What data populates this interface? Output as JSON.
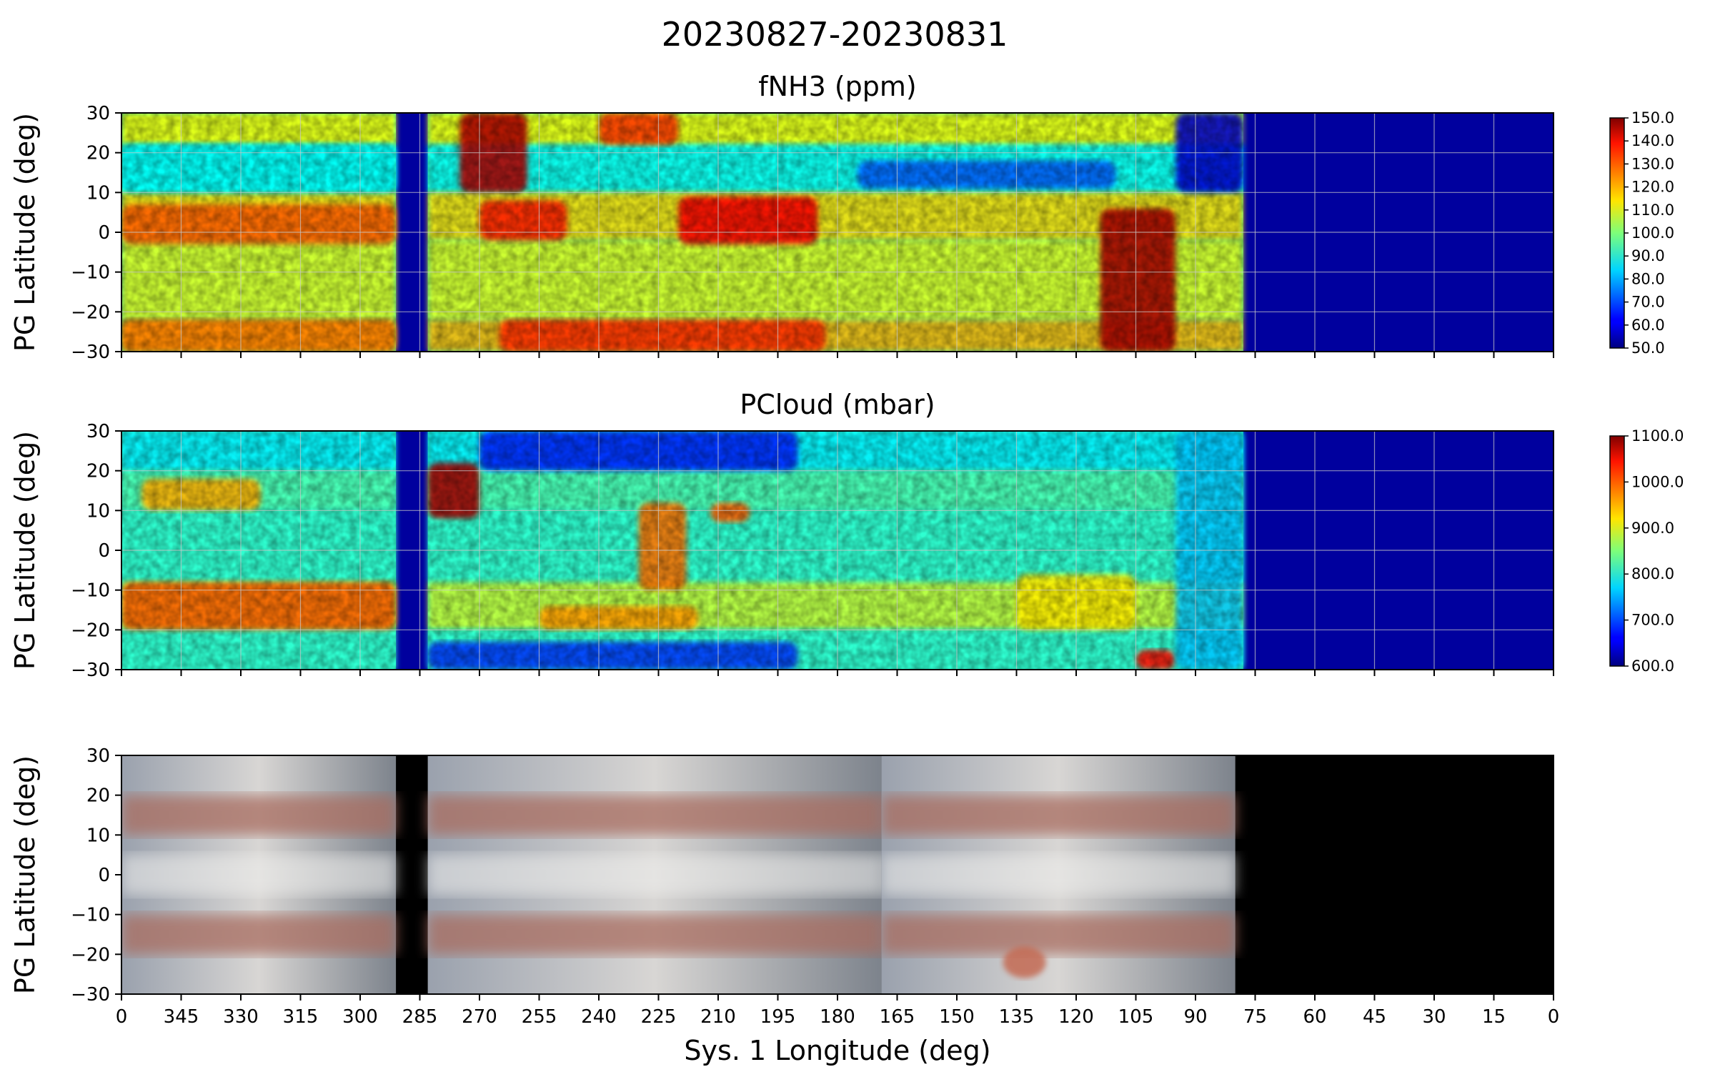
{
  "title": "20230827-20230831",
  "chart_data": [
    {
      "type": "heatmap",
      "title": "fNH3 (ppm)",
      "ylabel": "PG Latitude (deg)",
      "xlabel": "",
      "xlim": [
        360,
        0
      ],
      "ylim": [
        -30,
        30
      ],
      "x_ticks": [
        "0",
        "345",
        "330",
        "315",
        "300",
        "285",
        "270",
        "255",
        "240",
        "225",
        "210",
        "195",
        "180",
        "165",
        "150",
        "135",
        "120",
        "105",
        "90",
        "75",
        "60",
        "45",
        "30",
        "15",
        "0"
      ],
      "y_ticks": [
        "30",
        "20",
        "10",
        "0",
        "−10",
        "−20",
        "−30"
      ],
      "grid": true,
      "colormap": "jet",
      "colorbar": {
        "min": 50,
        "max": 150,
        "ticks": [
          "150.0",
          "140.0",
          "130.0",
          "120.0",
          "110.0",
          "100.0",
          "90.0",
          "80.0",
          "70.0",
          "60.0",
          "50.0"
        ]
      },
      "coverage_lon": [
        [
          291,
          360
        ],
        [
          78,
          283
        ]
      ],
      "features": [
        {
          "lon": [
            360,
            291
          ],
          "lat": [
            -3,
            7
          ],
          "value": 128
        },
        {
          "lon": [
            360,
            291
          ],
          "lat": [
            -30,
            -22
          ],
          "value": 125
        },
        {
          "lon": [
            360,
            291
          ],
          "lat": [
            10,
            22
          ],
          "value": 88
        },
        {
          "lon": [
            275,
            258
          ],
          "lat": [
            10,
            30
          ],
          "value": 145
        },
        {
          "lon": [
            240,
            220
          ],
          "lat": [
            22,
            30
          ],
          "value": 132
        },
        {
          "lon": [
            270,
            248
          ],
          "lat": [
            -2,
            8
          ],
          "value": 135
        },
        {
          "lon": [
            220,
            185
          ],
          "lat": [
            -3,
            9
          ],
          "value": 138
        },
        {
          "lon": [
            265,
            183
          ],
          "lat": [
            -30,
            -22
          ],
          "value": 133
        },
        {
          "lon": [
            175,
            110
          ],
          "lat": [
            11,
            18
          ],
          "value": 72
        },
        {
          "lon": [
            114,
            95
          ],
          "lat": [
            -30,
            6
          ],
          "value": 146
        },
        {
          "lon": [
            95,
            78
          ],
          "lat": [
            10,
            30
          ],
          "value": 58
        }
      ]
    },
    {
      "type": "heatmap",
      "title": "PCloud (mbar)",
      "ylabel": "PG Latitude (deg)",
      "xlabel": "",
      "xlim": [
        360,
        0
      ],
      "ylim": [
        -30,
        30
      ],
      "x_ticks": [
        "0",
        "345",
        "330",
        "315",
        "300",
        "285",
        "270",
        "255",
        "240",
        "225",
        "210",
        "195",
        "180",
        "165",
        "150",
        "135",
        "120",
        "105",
        "90",
        "75",
        "60",
        "45",
        "30",
        "15",
        "0"
      ],
      "y_ticks": [
        "30",
        "20",
        "10",
        "0",
        "−10",
        "−20",
        "−30"
      ],
      "grid": true,
      "colormap": "jet",
      "colorbar": {
        "min": 600,
        "max": 1100,
        "ticks": [
          "1100.0",
          "1000.0",
          "900.0",
          "800.0",
          "700.0",
          "600.0"
        ]
      },
      "coverage_lon": [
        [
          291,
          360
        ],
        [
          78,
          283
        ]
      ],
      "features": [
        {
          "lon": [
            360,
            291
          ],
          "lat": [
            -20,
            -8
          ],
          "value": 990
        },
        {
          "lon": [
            355,
            325
          ],
          "lat": [
            10,
            18
          ],
          "value": 950
        },
        {
          "lon": [
            283,
            270
          ],
          "lat": [
            8,
            22
          ],
          "value": 1080
        },
        {
          "lon": [
            270,
            190
          ],
          "lat": [
            20,
            30
          ],
          "value": 680
        },
        {
          "lon": [
            283,
            190
          ],
          "lat": [
            -30,
            -23
          ],
          "value": 690
        },
        {
          "lon": [
            255,
            215
          ],
          "lat": [
            -20,
            -14
          ],
          "value": 960
        },
        {
          "lon": [
            230,
            218
          ],
          "lat": [
            -10,
            12
          ],
          "value": 980
        },
        {
          "lon": [
            212,
            202
          ],
          "lat": [
            7,
            12
          ],
          "value": 990
        },
        {
          "lon": [
            135,
            105
          ],
          "lat": [
            -20,
            -6
          ],
          "value": 920
        },
        {
          "lon": [
            105,
            95
          ],
          "lat": [
            -30,
            -25
          ],
          "value": 1030
        },
        {
          "lon": [
            95,
            78
          ],
          "lat": [
            -30,
            30
          ],
          "value": 760
        }
      ]
    },
    {
      "type": "image",
      "title": "",
      "ylabel": "PG Latitude (deg)",
      "xlabel": "Sys. 1 Longitude (deg)",
      "xlim": [
        360,
        0
      ],
      "ylim": [
        -30,
        30
      ],
      "x_ticks": [
        "0",
        "345",
        "330",
        "315",
        "300",
        "285",
        "270",
        "255",
        "240",
        "225",
        "210",
        "195",
        "180",
        "165",
        "150",
        "135",
        "120",
        "105",
        "90",
        "75",
        "60",
        "45",
        "30",
        "15",
        "0"
      ],
      "y_ticks": [
        "30",
        "20",
        "10",
        "0",
        "−10",
        "−20",
        "−30"
      ],
      "grid": false,
      "coverage_lon": [
        [
          291,
          360
        ],
        [
          169,
          283
        ],
        [
          80,
          169
        ]
      ],
      "features": [
        {
          "name": "belt",
          "lat": [
            10,
            20
          ]
        },
        {
          "name": "belt",
          "lat": [
            -20,
            -10
          ]
        },
        {
          "name": "spot",
          "lon": 133,
          "lat": -22
        }
      ]
    }
  ]
}
